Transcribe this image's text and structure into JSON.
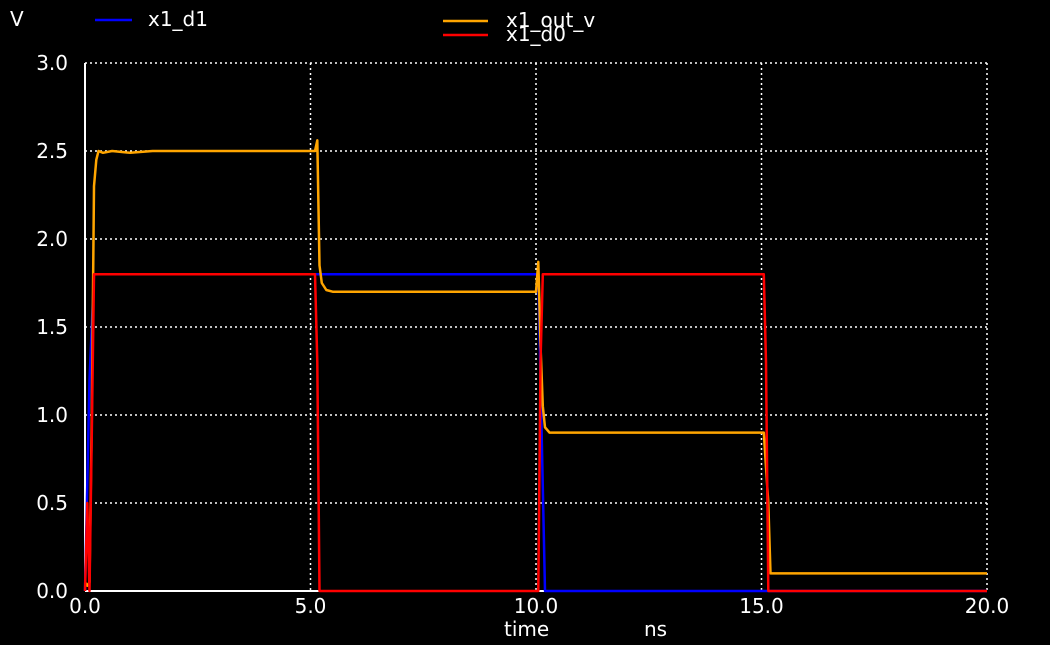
{
  "chart_data": {
    "type": "line",
    "ylabel": "V",
    "xlabel": "time",
    "xunit": "ns",
    "xlim": [
      0,
      20
    ],
    "ylim": [
      0,
      3
    ],
    "xticks": [
      "0.0",
      "5.0",
      "10.0",
      "15.0",
      "20.0"
    ],
    "yticks": [
      "0.0",
      "0.5",
      "1.0",
      "1.5",
      "2.0",
      "2.5",
      "3.0"
    ],
    "grid": true,
    "background": "#000000",
    "series": [
      {
        "name": "x1_d1",
        "color": "#0000ff",
        "x": [
          0,
          0.1,
          0.2,
          5.15,
          5.15,
          10.05,
          10.2,
          20.0
        ],
        "y": [
          0,
          1.2,
          1.8,
          1.8,
          1.8,
          1.8,
          0.0,
          0.0
        ]
      },
      {
        "name": "x1_out_v",
        "color": "#ffa500",
        "x": [
          0,
          0.05,
          0.1,
          0.15,
          0.2,
          0.25,
          0.3,
          0.4,
          0.6,
          1.0,
          1.5,
          5.0,
          5.1,
          5.15,
          5.2,
          5.25,
          5.35,
          5.5,
          10.0,
          10.05,
          10.1,
          10.15,
          10.2,
          10.3,
          10.5,
          12.0,
          15.0,
          15.05,
          15.15,
          15.2,
          15.3,
          20.0
        ],
        "y": [
          0.05,
          0.03,
          0.05,
          1.0,
          2.3,
          2.45,
          2.5,
          2.49,
          2.5,
          2.49,
          2.5,
          2.5,
          2.5,
          2.56,
          1.85,
          1.75,
          1.71,
          1.7,
          1.7,
          1.87,
          1.4,
          1.05,
          0.93,
          0.9,
          0.9,
          0.9,
          0.9,
          0.9,
          0.5,
          0.1,
          0.1,
          0.1
        ]
      },
      {
        "name": "x1_d0",
        "color": "#ff0000",
        "x": [
          0,
          0.05,
          0.1,
          0.15,
          0.2,
          5.0,
          5.1,
          5.15,
          5.2,
          10.0,
          10.05,
          10.1,
          10.15,
          15.0,
          15.05,
          15.1,
          15.15,
          20.0
        ],
        "y": [
          0.0,
          0.5,
          0.0,
          0.9,
          1.8,
          1.8,
          1.8,
          1.3,
          0.0,
          0.0,
          0.0,
          1.3,
          1.8,
          1.8,
          1.8,
          1.3,
          0.0,
          0.0
        ]
      }
    ]
  }
}
